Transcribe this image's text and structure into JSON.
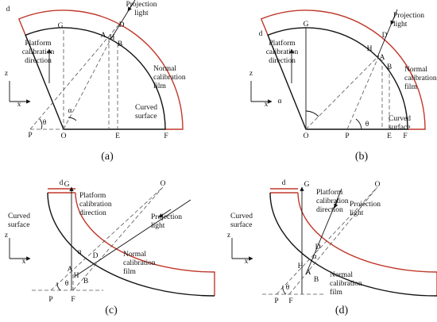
{
  "panels": [
    {
      "caption": "(a)",
      "labels": [
        [
          "Projection",
          "light"
        ],
        [
          "D"
        ],
        [
          "A"
        ],
        [
          "H"
        ],
        [
          "B"
        ],
        [
          "G"
        ],
        [
          "d"
        ],
        [
          "Platform",
          "calibration",
          "direction"
        ],
        [
          "Normal",
          "calibration",
          "film"
        ],
        [
          "z"
        ],
        [
          "x"
        ],
        [
          "θ"
        ],
        [
          "α"
        ],
        [
          "Curved",
          "surface"
        ],
        [
          "P"
        ],
        [
          "O"
        ],
        [
          "E"
        ],
        [
          "F"
        ]
      ]
    },
    {
      "caption": "(b)",
      "labels": [
        [
          "Projection",
          "light"
        ],
        [
          "D"
        ],
        [
          "A"
        ],
        [
          "H"
        ],
        [
          "B"
        ],
        [
          "G"
        ],
        [
          "d"
        ],
        [
          "Platform",
          "calibration",
          "direction"
        ],
        [
          "Normal",
          "calibration",
          "film"
        ],
        [
          "z"
        ],
        [
          "x"
        ],
        [
          "θ"
        ],
        [
          "α"
        ],
        [
          "Curved",
          "surface"
        ],
        [
          "P"
        ],
        [
          "O"
        ],
        [
          "E"
        ],
        [
          "F"
        ]
      ]
    },
    {
      "caption": "(c)",
      "labels": [
        [
          "Projection",
          "light"
        ],
        [
          "D"
        ],
        [
          "A"
        ],
        [
          "H"
        ],
        [
          "B"
        ],
        [
          "G"
        ],
        [
          "d"
        ],
        [
          "Platform",
          "calibration",
          "direction"
        ],
        [
          "Normal",
          "calibration",
          "film"
        ],
        [
          "z"
        ],
        [
          "x"
        ],
        [
          "θ"
        ],
        [
          "α"
        ],
        [
          "Curved",
          "surface"
        ],
        [
          "P"
        ],
        [
          "O"
        ],
        [
          "F"
        ]
      ]
    },
    {
      "caption": "(d)",
      "labels": [
        [
          "Projection",
          "light"
        ],
        [
          "D"
        ],
        [
          "A"
        ],
        [
          "H"
        ],
        [
          "B"
        ],
        [
          "G"
        ],
        [
          "d"
        ],
        [
          "Platform",
          "calibration",
          "direction"
        ],
        [
          "Normal",
          "calibration",
          "film"
        ],
        [
          "z"
        ],
        [
          "x"
        ],
        [
          "θ"
        ],
        [
          "α"
        ],
        [
          "Curved",
          "surface"
        ],
        [
          "P"
        ],
        [
          "O"
        ],
        [
          "F"
        ]
      ]
    }
  ]
}
